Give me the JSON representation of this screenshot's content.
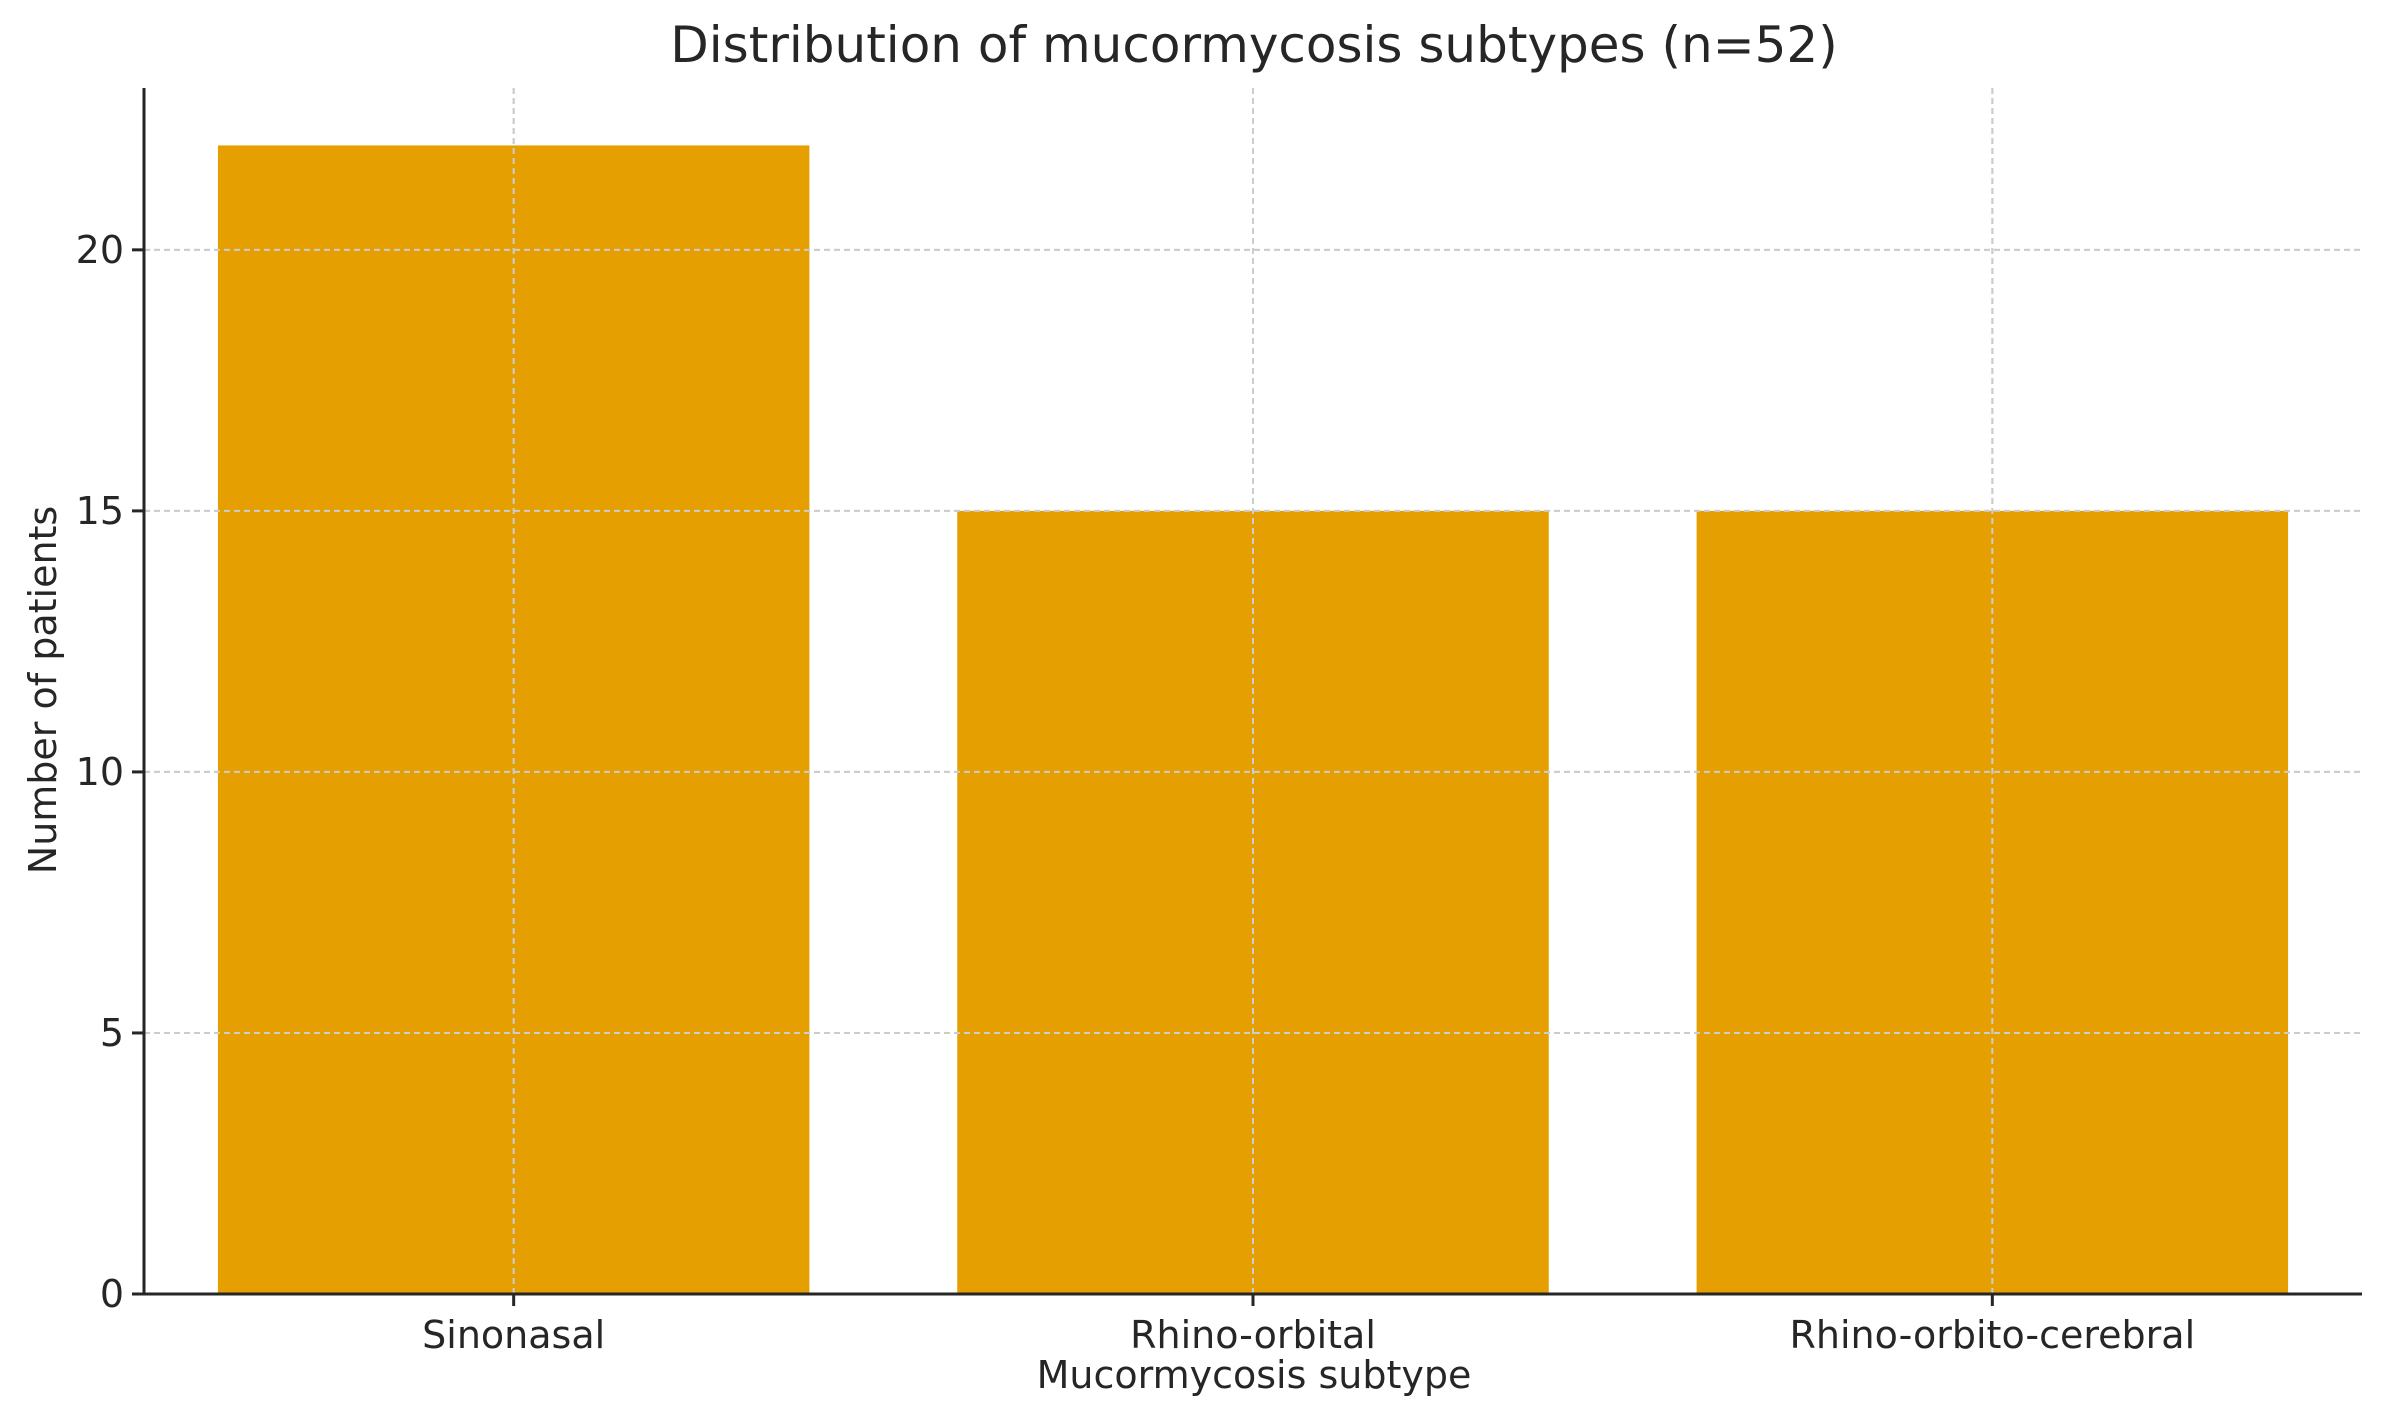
{
  "chart_data": {
    "type": "bar",
    "title": "Distribution of mucormycosis subtypes (n=52)",
    "xlabel": "Mucormycosis subtype",
    "ylabel": "Number of patients",
    "categories": [
      "Sinonasal",
      "Rhino-orbital",
      "Rhino-orbito-cerebral"
    ],
    "values": [
      22,
      15,
      15
    ],
    "ylim": [
      0,
      23.1
    ],
    "yticks": [
      0,
      5,
      10,
      15,
      20
    ],
    "grid": true,
    "legend": "none",
    "bar_color": "#E69F00"
  }
}
